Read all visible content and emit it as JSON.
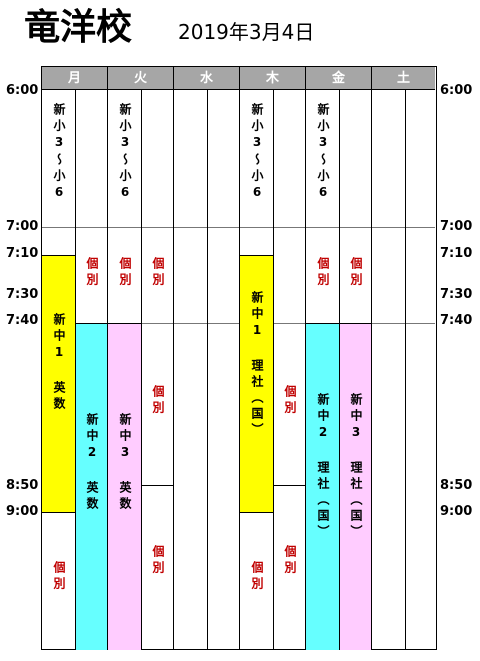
{
  "header": {
    "title": "竜洋校",
    "date": "2019年3月4日"
  },
  "times": [
    "6:00",
    "7:00",
    "7:10",
    "7:30",
    "7:40",
    "8:50",
    "9:00"
  ],
  "days": [
    "月",
    "火",
    "水",
    "木",
    "金",
    "土"
  ],
  "classes": {
    "elem": "新小3〜小6",
    "kobetsu": "個別",
    "mon_c1": "新中1 英数",
    "mon_c2": "新中2 英数",
    "tue_c3": "新中3 英数",
    "thu_c1": "新中1 理社（国）",
    "fri_c2": "新中2 理社（国）",
    "fri_c3": "新中3 理社（国）"
  },
  "colors": {
    "yellow": "#ffff00",
    "cyan": "#66ffff",
    "pink": "#ffccff",
    "header_gray": "#a6a6a6",
    "red_text": "#c00000"
  }
}
